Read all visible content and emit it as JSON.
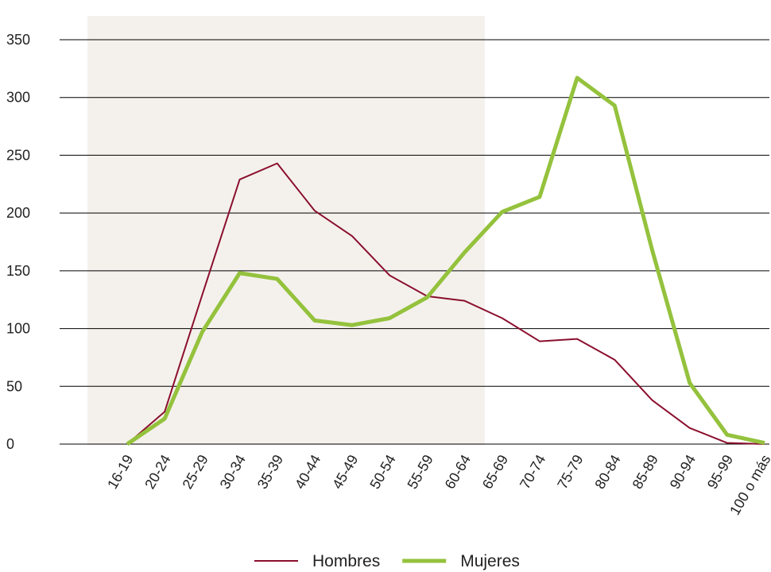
{
  "chart_data": {
    "type": "line",
    "categories": [
      "16-19",
      "20-24",
      "25-29",
      "30-34",
      "35-39",
      "40-44",
      "45-49",
      "50-54",
      "55-59",
      "60-64",
      "65-69",
      "70-74",
      "75-79",
      "80-84",
      "85-89",
      "90-94",
      "95-99",
      "100 o más"
    ],
    "series": [
      {
        "name": "Hombres",
        "color": "#8b0f2e",
        "width": 2,
        "values": [
          0,
          28,
          129,
          229,
          243,
          202,
          180,
          146,
          128,
          124,
          109,
          89,
          91,
          73,
          38,
          14,
          1,
          0
        ]
      },
      {
        "name": "Mujeres",
        "color": "#94c23d",
        "width": 5,
        "values": [
          0,
          22,
          97,
          148,
          143,
          107,
          103,
          109,
          127,
          166,
          201,
          214,
          317,
          293,
          168,
          53,
          8,
          1
        ]
      }
    ],
    "ylim": [
      0,
      350
    ],
    "yticks": [
      0,
      50,
      100,
      150,
      200,
      250,
      300,
      350
    ],
    "grid": true,
    "legend": "bottom"
  }
}
